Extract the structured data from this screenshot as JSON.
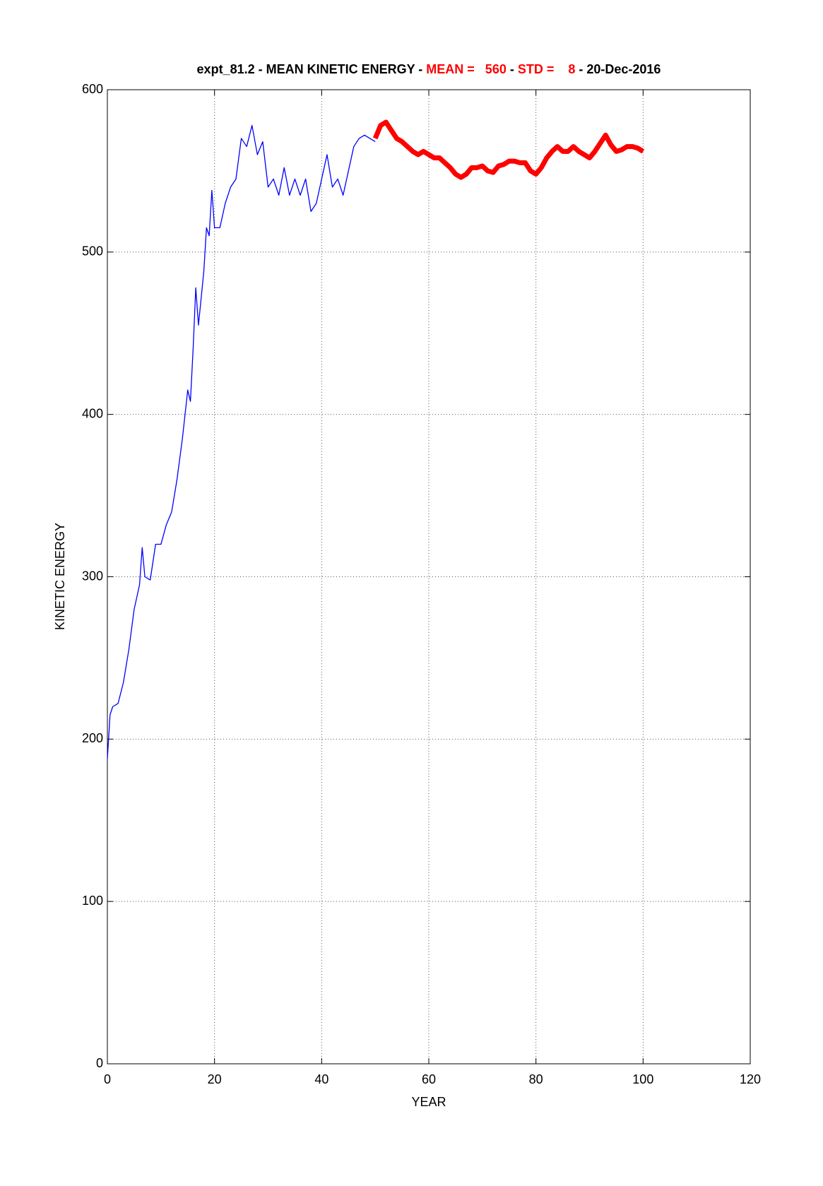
{
  "chart_data": {
    "type": "line",
    "title_parts": [
      {
        "text": "expt_81.2 - MEAN KINETIC ENERGY - ",
        "color": "#000000"
      },
      {
        "text": "MEAN =   560",
        "color": "#ff0000"
      },
      {
        "text": " - ",
        "color": "#000000"
      },
      {
        "text": "STD =    8",
        "color": "#ff0000"
      },
      {
        "text": " - 20-Dec-2016",
        "color": "#000000"
      }
    ],
    "x_label": "YEAR",
    "y_label": "KINETIC ENERGY",
    "xlim": [
      0,
      120
    ],
    "ylim": [
      0,
      600
    ],
    "xticks": [
      0,
      20,
      40,
      60,
      80,
      100,
      120
    ],
    "yticks": [
      0,
      100,
      200,
      300,
      400,
      500,
      600
    ],
    "grid": true,
    "series": [
      {
        "color": "#0000ff",
        "width": 1.3,
        "x": [
          0,
          0.5,
          1,
          2,
          3,
          4,
          5,
          6,
          6.5,
          7,
          8,
          9,
          10,
          11,
          12,
          13,
          14,
          15,
          15.5,
          16,
          16.5,
          17,
          18,
          18.5,
          19,
          19.5,
          20,
          21,
          22,
          23,
          24,
          25,
          26,
          27,
          28,
          29,
          30,
          31,
          32,
          33,
          34,
          35,
          36,
          37,
          38,
          39,
          40,
          41,
          42,
          43,
          44,
          45,
          46,
          47,
          48,
          49,
          50
        ],
        "values": [
          188,
          215,
          220,
          222,
          235,
          255,
          280,
          295,
          318,
          300,
          298,
          320,
          320,
          332,
          340,
          360,
          385,
          415,
          408,
          440,
          478,
          455,
          488,
          515,
          510,
          538,
          515,
          515,
          530,
          540,
          545,
          570,
          565,
          578,
          560,
          568,
          540,
          545,
          535,
          552,
          535,
          545,
          535,
          545,
          525,
          530,
          545,
          560,
          540,
          545,
          535,
          550,
          565,
          570,
          572,
          570,
          568
        ]
      },
      {
        "color": "#ff0000",
        "width": 7,
        "x": [
          50,
          51,
          52,
          53,
          54,
          55,
          56,
          57,
          58,
          59,
          60,
          61,
          62,
          63,
          64,
          65,
          66,
          67,
          68,
          69,
          70,
          71,
          72,
          73,
          74,
          75,
          76,
          77,
          78,
          79,
          80,
          81,
          82,
          83,
          84,
          85,
          86,
          87,
          88,
          89,
          90,
          91,
          92,
          93,
          94,
          95,
          96,
          97,
          98,
          99,
          100
        ],
        "values": [
          570,
          578,
          580,
          575,
          570,
          568,
          565,
          562,
          560,
          562,
          560,
          558,
          558,
          555,
          552,
          548,
          546,
          548,
          552,
          552,
          553,
          550,
          549,
          553,
          554,
          556,
          556,
          555,
          555,
          550,
          548,
          552,
          558,
          562,
          565,
          562,
          562,
          565,
          562,
          560,
          558,
          562,
          567,
          572,
          566,
          562,
          563,
          565,
          565,
          564,
          562
        ]
      }
    ]
  }
}
